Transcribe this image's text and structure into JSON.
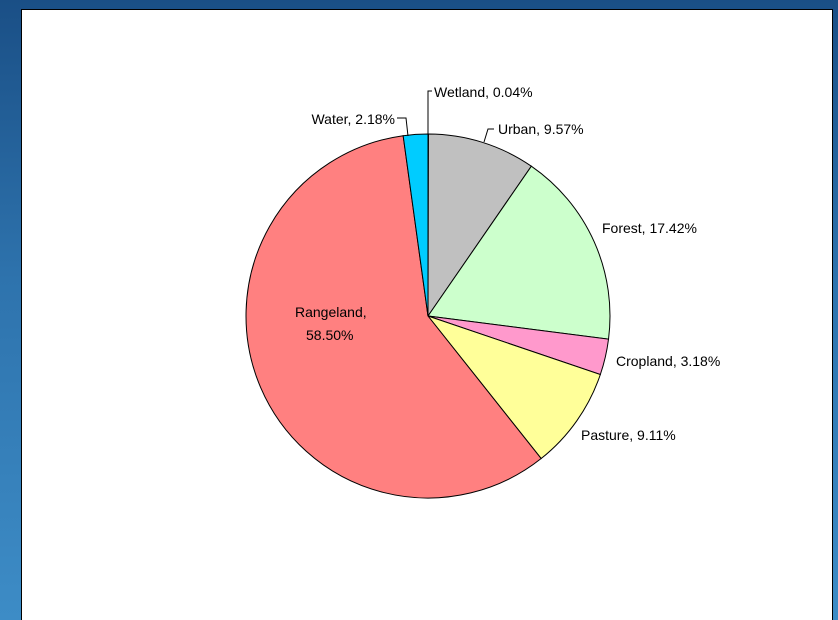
{
  "chart_data": {
    "type": "pie",
    "title": "",
    "start_angle_deg": 0,
    "direction": "clockwise",
    "slices": [
      {
        "name": "Wetland",
        "value": 0.04,
        "label": "Wetland, 0.04%",
        "color": "#9999ff"
      },
      {
        "name": "Urban",
        "value": 9.57,
        "label": "Urban, 9.57%",
        "color": "#c0c0c0"
      },
      {
        "name": "Forest",
        "value": 17.42,
        "label": "Forest, 17.42%",
        "color": "#ccffcc"
      },
      {
        "name": "Cropland",
        "value": 3.18,
        "label": "Cropland, 3.18%",
        "color": "#ff99cc"
      },
      {
        "name": "Pasture",
        "value": 9.11,
        "label": "Pasture, 9.11%",
        "color": "#ffff99"
      },
      {
        "name": "Rangeland",
        "value": 58.5,
        "label_line1": "Rangeland,",
        "label_line2": "58.50%",
        "color": "#ff8080"
      },
      {
        "name": "Water",
        "value": 2.18,
        "label": "Water, 2.18%",
        "color": "#00ccff"
      }
    ]
  }
}
